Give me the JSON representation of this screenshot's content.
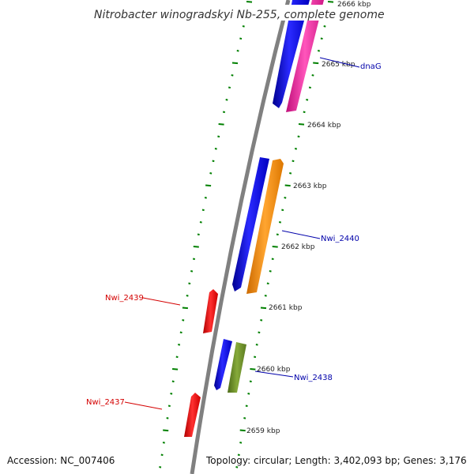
{
  "header": {
    "title": "Nitrobacter winogradskyi Nb-255, complete genome"
  },
  "ticks": [
    {
      "label": "2666 kbp"
    },
    {
      "label": "2665 kbp"
    },
    {
      "label": "2664 kbp"
    },
    {
      "label": "2663 kbp"
    },
    {
      "label": "2662 kbp"
    },
    {
      "label": "2661 kbp"
    },
    {
      "label": "2660 kbp"
    },
    {
      "label": "2659 kbp"
    }
  ],
  "genes": {
    "dnaG": "dnaG",
    "nwi2440": "Nwi_2440",
    "nwi2439": "Nwi_2439",
    "nwi2438": "Nwi_2438",
    "nwi2437": "Nwi_2437"
  },
  "colors": {
    "backbone": "#808080",
    "blue": "#0000ff",
    "pink": "#ff33aa",
    "orange": "#ff8c00",
    "olive": "#6b8e23",
    "red": "#ff0000",
    "tick": "#008000",
    "label_blue": "#0000aa",
    "label_red": "#d40000"
  },
  "footer": {
    "accession": "Accession: NC_007406",
    "topology": "Topology: circular; Length: 3,402,093 bp; Genes: 3,176"
  }
}
